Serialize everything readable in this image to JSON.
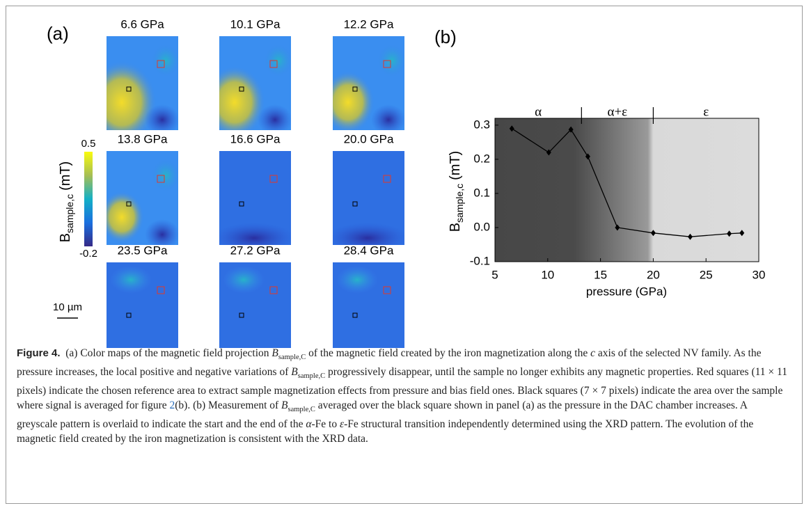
{
  "panel_labels": [
    "(a)",
    "(b)"
  ],
  "maps": {
    "labels": [
      "6.6 GPa",
      "10.1 GPa",
      "12.2 GPa",
      "13.8 GPa",
      "16.6 GPa",
      "20.0 GPa",
      "23.5 GPa",
      "27.2 GPa",
      "28.4 GPa"
    ],
    "colorbar": {
      "label": {
        "main": "B",
        "sub": "sample,c",
        "unit": "(mT)"
      },
      "lim": [
        -0.2,
        0.5
      ],
      "ticks": [
        0.5,
        -0.2
      ]
    },
    "scale_bar": "10 µm"
  },
  "chart_data": {
    "type": "line",
    "x": [
      6.6,
      10.1,
      12.2,
      13.8,
      16.6,
      20.0,
      23.5,
      27.2,
      28.4
    ],
    "values": [
      0.29,
      0.22,
      0.287,
      0.208,
      0.0,
      -0.016,
      -0.027,
      -0.018,
      -0.016
    ],
    "color": "#000000",
    "xlabel": "pressure (GPa)",
    "ylabel": {
      "main": "B",
      "sub": "sample,c",
      "unit": "(mT)"
    },
    "xlim": [
      5,
      30
    ],
    "xticks": [
      5,
      10,
      15,
      20,
      25,
      30
    ],
    "ylim": [
      -0.1,
      0.32
    ],
    "yticks": [
      -0.1,
      {
        "value": 0,
        "label": "0.0"
      },
      0.1,
      0.2,
      0.3
    ],
    "regions": [
      {
        "label": "α",
        "start": 5,
        "end": 13.2
      },
      {
        "label": "α+ε",
        "start": 13.2,
        "end": 20
      },
      {
        "label": "ε",
        "start": 20,
        "end": 30
      }
    ]
  },
  "caption": {
    "label": "Figure 4.",
    "segments": [
      "(a) Color maps of the magnetic field projection ",
      "B",
      "sample,C",
      " of the magnetic field created by the iron magnetization along the ",
      "c",
      " axis of the selected NV family. As the pressure increases, the local positive and negative variations of ",
      "B",
      "sample,C",
      " progressively disappear, until the sample no longer exhibits any magnetic properties. Red squares (11 × 11 pixels) indicate the chosen reference area to extract sample magnetization effects from pressure and bias field ones. Black squares (7 × 7 pixels) indicate the area over the sample where signal is averaged for figure ",
      "2",
      "(b). (b) Measurement of ",
      "B",
      "sample,C",
      " averaged over the black square shown in panel (a) as the pressure in the DAC chamber increases. A greyscale pattern is overlaid to indicate the start and the end of the ",
      "α",
      "-Fe to ",
      "ε",
      "-Fe structural transition independently determined using the XRD pattern. The evolution of the magnetic field created by the iron magnetization is consistent with the XRD data."
    ]
  }
}
